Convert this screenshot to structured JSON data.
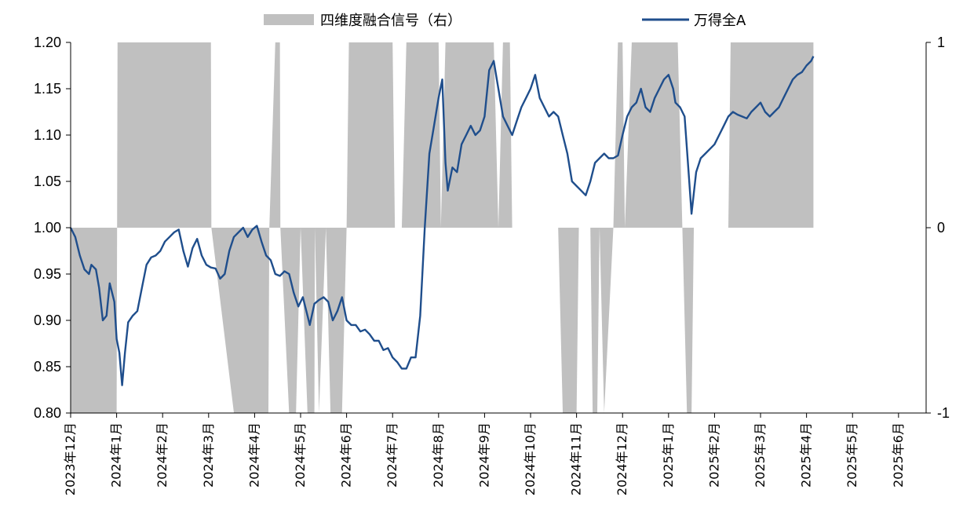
{
  "chart_data": {
    "type": "line",
    "legend": {
      "placement": "top",
      "items": [
        {
          "label": "四维度融合信号（右）",
          "kind": "area",
          "color": "#c0c0c0"
        },
        {
          "label": "万得全A",
          "kind": "line",
          "color": "#1f4e8c"
        }
      ]
    },
    "y_left": {
      "min": 0.8,
      "max": 1.2,
      "ticks": [
        "0.80",
        "0.85",
        "0.90",
        "0.95",
        "1.00",
        "1.05",
        "1.10",
        "1.15",
        "1.20"
      ]
    },
    "y_right": {
      "min": -1,
      "max": 1,
      "ticks": [
        "-1",
        "0",
        "1"
      ]
    },
    "x_labels": [
      "2023年12月",
      "2024年1月",
      "2024年2月",
      "2024年3月",
      "2024年4月",
      "2024年5月",
      "2024年6月",
      "2024年7月",
      "2024年8月",
      "2024年9月",
      "2024年10月",
      "2024年11月",
      "2024年12月",
      "2025年1月",
      "2025年2月",
      "2025年3月",
      "2025年4月",
      "2025年5月",
      "2025年6月"
    ],
    "series": [
      {
        "name": "万得全A",
        "axis": "left",
        "color": "#1f4e8c",
        "points": [
          [
            0,
            1.0
          ],
          [
            0.05,
            0.995
          ],
          [
            0.1,
            0.99
          ],
          [
            0.2,
            0.97
          ],
          [
            0.3,
            0.955
          ],
          [
            0.4,
            0.95
          ],
          [
            0.45,
            0.96
          ],
          [
            0.55,
            0.955
          ],
          [
            0.62,
            0.935
          ],
          [
            0.7,
            0.9
          ],
          [
            0.78,
            0.905
          ],
          [
            0.85,
            0.94
          ],
          [
            0.95,
            0.92
          ],
          [
            1.0,
            0.88
          ],
          [
            1.06,
            0.865
          ],
          [
            1.12,
            0.83
          ],
          [
            1.18,
            0.865
          ],
          [
            1.25,
            0.898
          ],
          [
            1.35,
            0.905
          ],
          [
            1.45,
            0.91
          ],
          [
            1.55,
            0.935
          ],
          [
            1.65,
            0.96
          ],
          [
            1.75,
            0.968
          ],
          [
            1.85,
            0.97
          ],
          [
            1.95,
            0.975
          ],
          [
            2.05,
            0.985
          ],
          [
            2.15,
            0.99
          ],
          [
            2.25,
            0.995
          ],
          [
            2.35,
            0.998
          ],
          [
            2.45,
            0.975
          ],
          [
            2.55,
            0.958
          ],
          [
            2.65,
            0.978
          ],
          [
            2.75,
            0.988
          ],
          [
            2.85,
            0.97
          ],
          [
            2.95,
            0.96
          ],
          [
            3.05,
            0.957
          ],
          [
            3.15,
            0.956
          ],
          [
            3.25,
            0.945
          ],
          [
            3.35,
            0.95
          ],
          [
            3.45,
            0.975
          ],
          [
            3.55,
            0.99
          ],
          [
            3.65,
            0.995
          ],
          [
            3.75,
            1.0
          ],
          [
            3.85,
            0.99
          ],
          [
            3.95,
            0.998
          ],
          [
            4.05,
            1.002
          ],
          [
            4.15,
            0.985
          ],
          [
            4.25,
            0.97
          ],
          [
            4.35,
            0.965
          ],
          [
            4.45,
            0.95
          ],
          [
            4.55,
            0.948
          ],
          [
            4.65,
            0.953
          ],
          [
            4.75,
            0.95
          ],
          [
            4.85,
            0.93
          ],
          [
            4.95,
            0.915
          ],
          [
            5.05,
            0.925
          ],
          [
            5.15,
            0.905
          ],
          [
            5.2,
            0.895
          ],
          [
            5.3,
            0.918
          ],
          [
            5.4,
            0.922
          ],
          [
            5.5,
            0.925
          ],
          [
            5.6,
            0.92
          ],
          [
            5.7,
            0.9
          ],
          [
            5.8,
            0.91
          ],
          [
            5.9,
            0.925
          ],
          [
            6.0,
            0.9
          ],
          [
            6.1,
            0.895
          ],
          [
            6.2,
            0.895
          ],
          [
            6.3,
            0.888
          ],
          [
            6.4,
            0.89
          ],
          [
            6.5,
            0.885
          ],
          [
            6.6,
            0.878
          ],
          [
            6.7,
            0.878
          ],
          [
            6.8,
            0.868
          ],
          [
            6.9,
            0.87
          ],
          [
            7.0,
            0.86
          ],
          [
            7.1,
            0.855
          ],
          [
            7.2,
            0.848
          ],
          [
            7.3,
            0.848
          ],
          [
            7.4,
            0.86
          ],
          [
            7.5,
            0.86
          ],
          [
            7.6,
            0.905
          ],
          [
            7.7,
            1.0
          ],
          [
            7.8,
            1.08
          ],
          [
            7.9,
            1.11
          ],
          [
            8.0,
            1.14
          ],
          [
            8.08,
            1.16
          ],
          [
            8.15,
            1.07
          ],
          [
            8.2,
            1.04
          ],
          [
            8.3,
            1.065
          ],
          [
            8.4,
            1.06
          ],
          [
            8.5,
            1.09
          ],
          [
            8.6,
            1.1
          ],
          [
            8.7,
            1.11
          ],
          [
            8.8,
            1.1
          ],
          [
            8.9,
            1.105
          ],
          [
            9.0,
            1.12
          ],
          [
            9.1,
            1.17
          ],
          [
            9.2,
            1.18
          ],
          [
            9.3,
            1.15
          ],
          [
            9.4,
            1.12
          ],
          [
            9.5,
            1.11
          ],
          [
            9.6,
            1.1
          ],
          [
            9.7,
            1.115
          ],
          [
            9.8,
            1.13
          ],
          [
            9.9,
            1.14
          ],
          [
            10.0,
            1.15
          ],
          [
            10.1,
            1.165
          ],
          [
            10.2,
            1.14
          ],
          [
            10.3,
            1.13
          ],
          [
            10.4,
            1.12
          ],
          [
            10.5,
            1.125
          ],
          [
            10.6,
            1.12
          ],
          [
            10.7,
            1.1
          ],
          [
            10.8,
            1.08
          ],
          [
            10.9,
            1.05
          ],
          [
            11.0,
            1.045
          ],
          [
            11.1,
            1.04
          ],
          [
            11.2,
            1.035
          ],
          [
            11.3,
            1.05
          ],
          [
            11.4,
            1.07
          ],
          [
            11.5,
            1.075
          ],
          [
            11.6,
            1.08
          ],
          [
            11.7,
            1.075
          ],
          [
            11.8,
            1.075
          ],
          [
            11.9,
            1.078
          ],
          [
            12.0,
            1.1
          ],
          [
            12.1,
            1.12
          ],
          [
            12.2,
            1.13
          ],
          [
            12.3,
            1.135
          ],
          [
            12.4,
            1.15
          ],
          [
            12.5,
            1.13
          ],
          [
            12.6,
            1.125
          ],
          [
            12.7,
            1.14
          ],
          [
            12.8,
            1.15
          ],
          [
            12.9,
            1.16
          ],
          [
            13.0,
            1.165
          ],
          [
            13.1,
            1.15
          ],
          [
            13.15,
            1.135
          ],
          [
            13.25,
            1.13
          ],
          [
            13.35,
            1.12
          ],
          [
            13.45,
            1.05
          ],
          [
            13.5,
            1.015
          ],
          [
            13.6,
            1.06
          ],
          [
            13.7,
            1.075
          ],
          [
            13.8,
            1.08
          ],
          [
            13.9,
            1.085
          ],
          [
            14.0,
            1.09
          ],
          [
            14.1,
            1.1
          ],
          [
            14.2,
            1.11
          ],
          [
            14.3,
            1.12
          ],
          [
            14.4,
            1.125
          ],
          [
            14.5,
            1.122
          ],
          [
            14.6,
            1.12
          ],
          [
            14.7,
            1.118
          ],
          [
            14.8,
            1.125
          ],
          [
            14.9,
            1.13
          ],
          [
            15.0,
            1.135
          ],
          [
            15.1,
            1.125
          ],
          [
            15.2,
            1.12
          ],
          [
            15.3,
            1.125
          ],
          [
            15.4,
            1.13
          ],
          [
            15.5,
            1.14
          ],
          [
            15.6,
            1.15
          ],
          [
            15.7,
            1.16
          ],
          [
            15.8,
            1.165
          ],
          [
            15.9,
            1.168
          ],
          [
            16.0,
            1.175
          ],
          [
            16.1,
            1.18
          ],
          [
            16.15,
            1.185
          ]
        ]
      },
      {
        "name": "四维度融合信号（右）",
        "axis": "right",
        "kind": "area",
        "color": "#c0c0c0",
        "points": [
          [
            0,
            -1
          ],
          [
            1.0,
            -1
          ],
          [
            1.02,
            1
          ],
          [
            1.95,
            1
          ],
          [
            2.05,
            1
          ],
          [
            3.05,
            1
          ],
          [
            3.06,
            0
          ],
          [
            3.55,
            -1
          ],
          [
            4.3,
            -1
          ],
          [
            4.32,
            0
          ],
          [
            4.45,
            1
          ],
          [
            4.55,
            1
          ],
          [
            4.56,
            0
          ],
          [
            4.75,
            -1
          ],
          [
            4.9,
            -1
          ],
          [
            5.0,
            0
          ],
          [
            5.15,
            -1
          ],
          [
            5.3,
            -1
          ],
          [
            5.31,
            0
          ],
          [
            5.4,
            -1
          ],
          [
            5.55,
            0
          ],
          [
            5.65,
            -1
          ],
          [
            5.9,
            -1
          ],
          [
            6.0,
            0
          ],
          [
            6.05,
            1
          ],
          [
            7.0,
            1
          ],
          [
            7.05,
            0
          ],
          [
            7.2,
            0
          ],
          [
            7.3,
            1
          ],
          [
            8.0,
            1
          ],
          [
            8.05,
            0
          ],
          [
            8.15,
            1
          ],
          [
            9.1,
            1
          ],
          [
            9.2,
            1
          ],
          [
            9.3,
            0
          ],
          [
            9.4,
            1
          ],
          [
            9.55,
            1
          ],
          [
            9.6,
            0
          ],
          [
            10.6,
            0
          ],
          [
            10.7,
            -1
          ],
          [
            11.0,
            -1
          ],
          [
            11.05,
            0
          ],
          [
            11.3,
            0
          ],
          [
            11.35,
            -1
          ],
          [
            11.45,
            -1
          ],
          [
            11.5,
            0
          ],
          [
            11.6,
            -1
          ],
          [
            11.8,
            0
          ],
          [
            11.9,
            1
          ],
          [
            12.0,
            1
          ],
          [
            12.05,
            0
          ],
          [
            12.2,
            1
          ],
          [
            13.2,
            1
          ],
          [
            13.3,
            0
          ],
          [
            13.4,
            -1
          ],
          [
            13.5,
            -1
          ],
          [
            13.55,
            0
          ],
          [
            14.3,
            0
          ],
          [
            14.35,
            1
          ],
          [
            15.8,
            1
          ],
          [
            16.0,
            1
          ],
          [
            16.15,
            1
          ]
        ]
      }
    ]
  }
}
